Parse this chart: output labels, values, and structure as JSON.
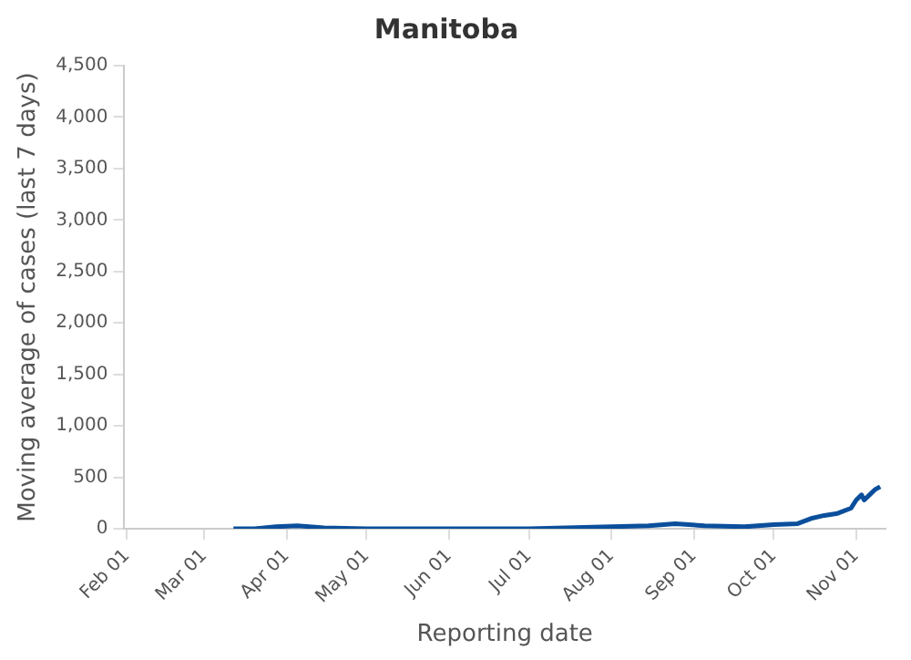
{
  "chart_data": {
    "type": "line",
    "title": "Manitoba",
    "xlabel": "Reporting date",
    "ylabel": "Moving average of cases (last 7 days)",
    "x": [
      "--03-12",
      "--03-20",
      "--03-28",
      "--04-05",
      "--04-15",
      "--05-01",
      "--06-01",
      "--07-01",
      "--08-01",
      "--08-15",
      "--08-25",
      "--09-05",
      "--09-20",
      "--10-01",
      "--10-10",
      "--10-15",
      "--10-20",
      "--10-25",
      "--10-30",
      "--11-01",
      "--11-03",
      "--11-04",
      "--11-06",
      "--11-08",
      "--11-10"
    ],
    "series": [
      {
        "color": "#0b4f9c",
        "values": [
          0,
          0,
          20,
          30,
          10,
          0,
          0,
          0,
          20,
          30,
          50,
          30,
          20,
          40,
          50,
          100,
          130,
          150,
          200,
          280,
          330,
          280,
          330,
          380,
          410
        ]
      }
    ],
    "xlim": [
      "--01-31",
      "--11-12"
    ],
    "ylim": [
      0,
      4500
    ],
    "xticks": [
      {
        "value": "--02-01",
        "label": "Feb 01"
      },
      {
        "value": "--03-01",
        "label": "Mar 01"
      },
      {
        "value": "--04-01",
        "label": "Apr 01"
      },
      {
        "value": "--05-01",
        "label": "May 01"
      },
      {
        "value": "--06-01",
        "label": "Jun 01"
      },
      {
        "value": "--07-01",
        "label": "Jul 01"
      },
      {
        "value": "--08-01",
        "label": "Aug 01"
      },
      {
        "value": "--09-01",
        "label": "Sep 01"
      },
      {
        "value": "--10-01",
        "label": "Oct 01"
      },
      {
        "value": "--11-01",
        "label": "Nov 01"
      }
    ],
    "yticks": [
      {
        "value": 0,
        "label": "0"
      },
      {
        "value": 500,
        "label": "500"
      },
      {
        "value": 1000,
        "label": "1,000"
      },
      {
        "value": 1500,
        "label": "1,500"
      },
      {
        "value": 2000,
        "label": "2,000"
      },
      {
        "value": 2500,
        "label": "2,500"
      },
      {
        "value": 3000,
        "label": "3,000"
      },
      {
        "value": 3500,
        "label": "3,500"
      },
      {
        "value": 4000,
        "label": "4,000"
      },
      {
        "value": 4500,
        "label": "4,500"
      }
    ],
    "grid": false,
    "legend": false,
    "marker": "none",
    "line_style": "solid"
  }
}
